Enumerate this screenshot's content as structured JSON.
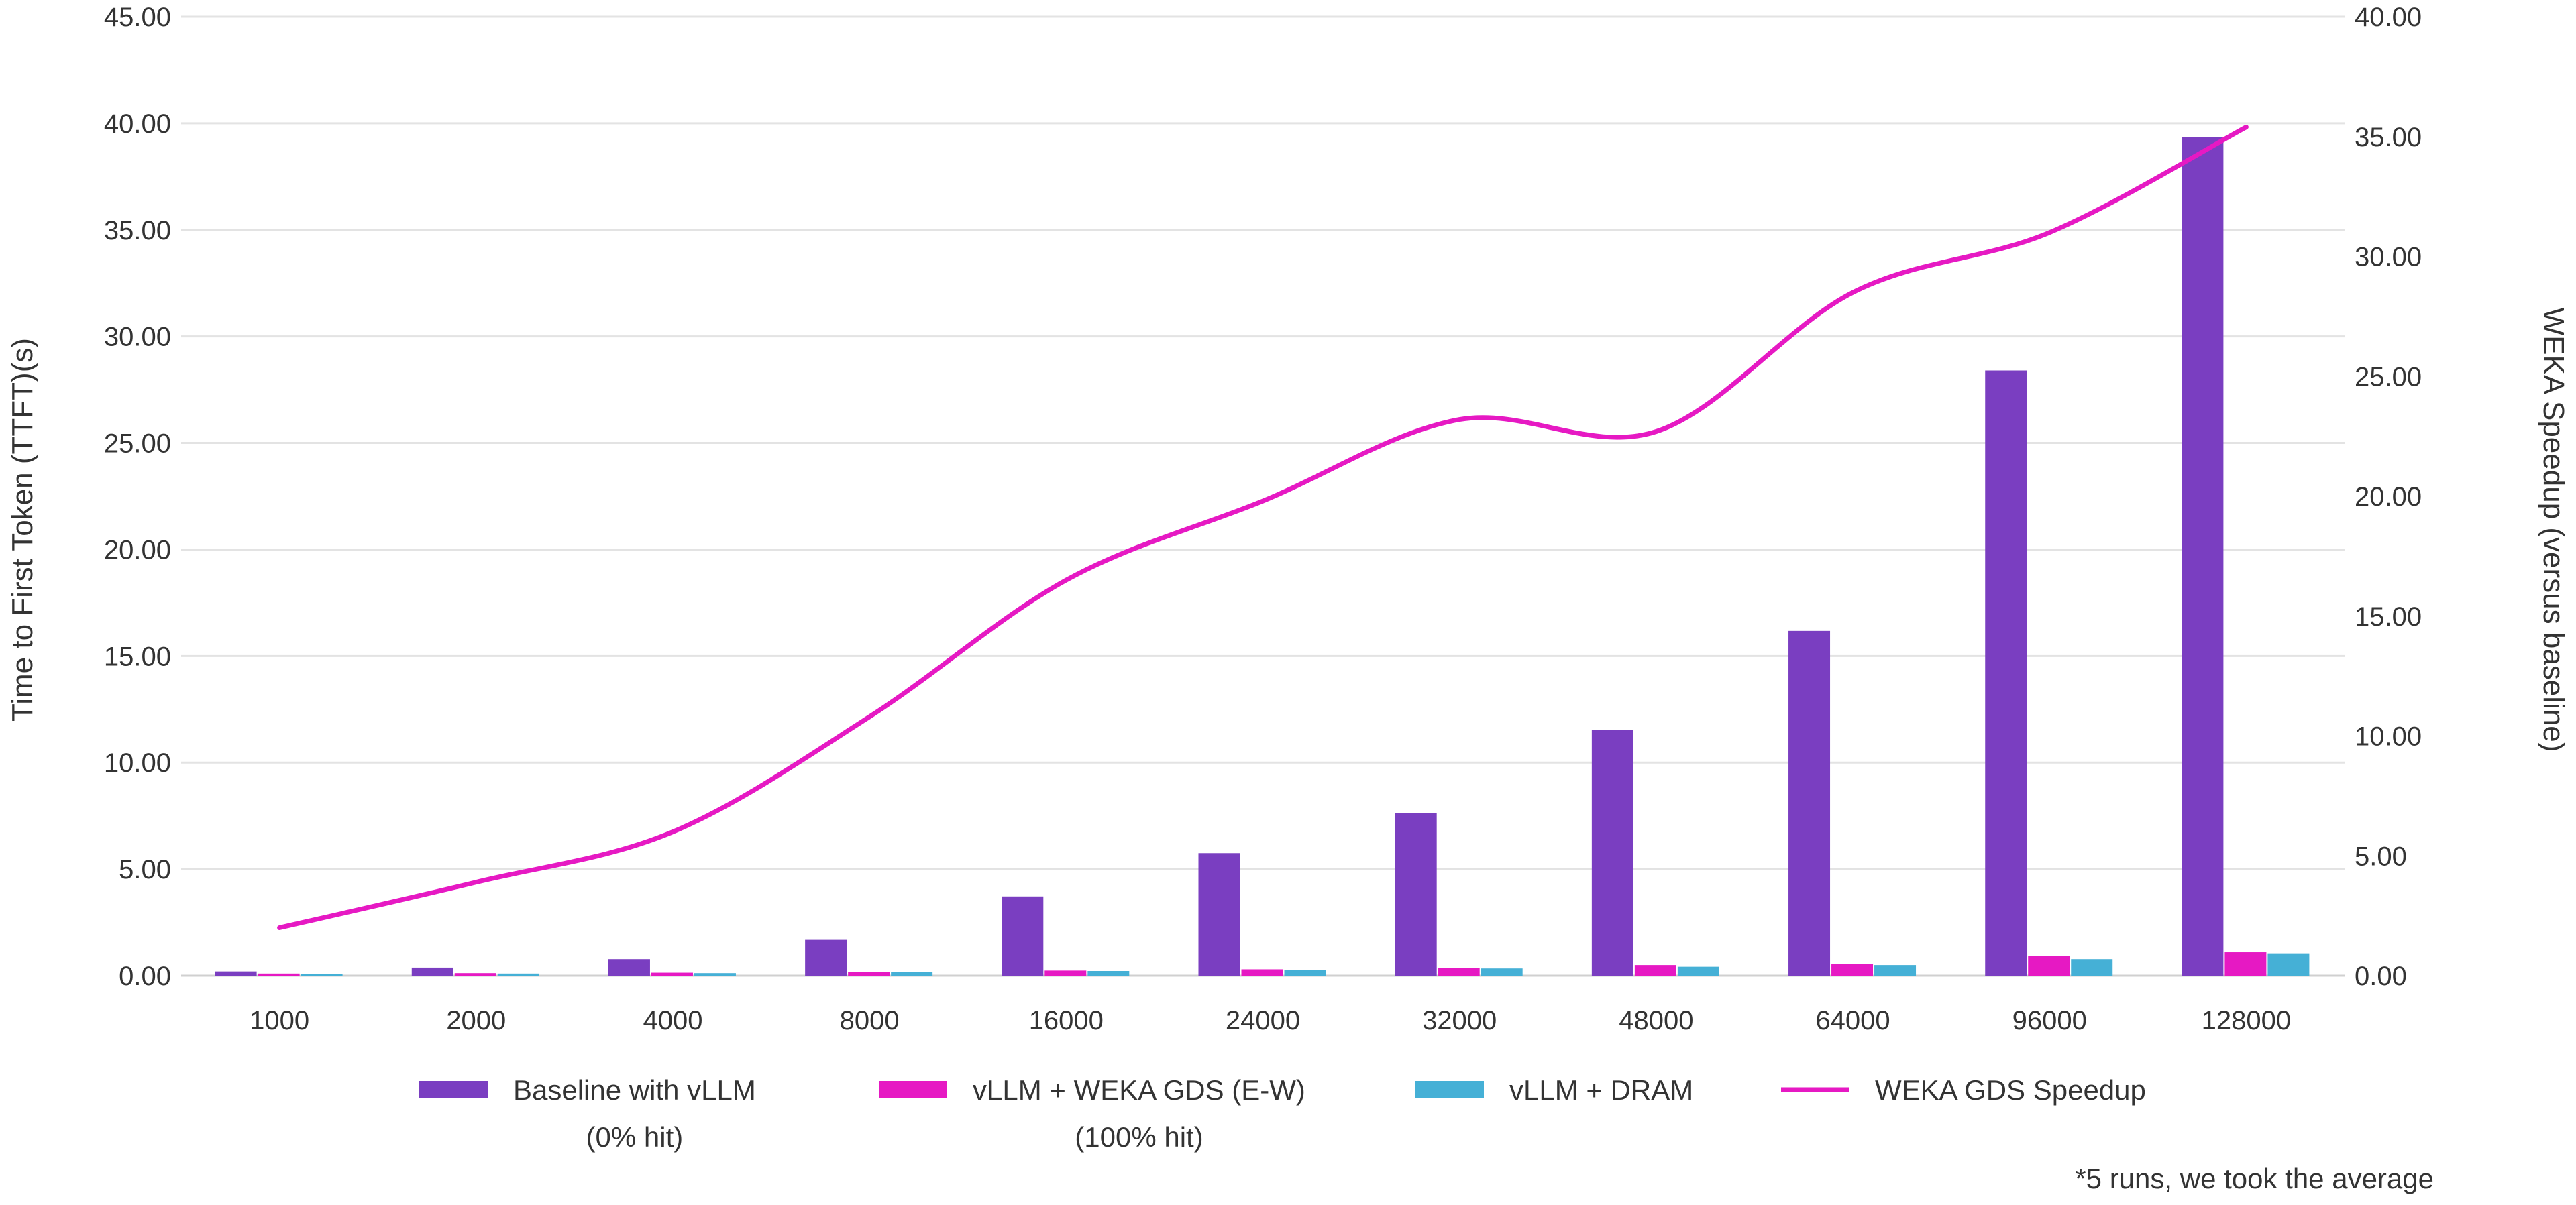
{
  "chart_data": {
    "type": "bar",
    "categories": [
      "1000",
      "2000",
      "4000",
      "8000",
      "16000",
      "24000",
      "32000",
      "48000",
      "64000",
      "96000",
      "128000"
    ],
    "series": [
      {
        "name": "Baseline with vLLM (0% hit)",
        "legend_lines": [
          "Baseline with vLLM",
          "(0% hit)"
        ],
        "type": "bar",
        "axis": "left",
        "color": "#7a3ec1",
        "values": [
          0.2,
          0.38,
          0.78,
          1.68,
          3.72,
          5.75,
          7.62,
          11.52,
          16.18,
          28.4,
          39.35
        ]
      },
      {
        "name": "vLLM + WEKA GDS (E-W) (100% hit)",
        "legend_lines": [
          "vLLM + WEKA GDS (E-W)",
          "(100% hit)"
        ],
        "type": "bar",
        "axis": "left",
        "color": "#e619c3",
        "values": [
          0.1,
          0.12,
          0.14,
          0.18,
          0.24,
          0.3,
          0.36,
          0.5,
          0.56,
          0.92,
          1.1
        ]
      },
      {
        "name": "vLLM + DRAM",
        "legend_lines": [
          "vLLM + DRAM"
        ],
        "type": "bar",
        "axis": "left",
        "color": "#45b0d6",
        "values": [
          0.08,
          0.1,
          0.12,
          0.16,
          0.22,
          0.28,
          0.34,
          0.42,
          0.5,
          0.78,
          1.05
        ]
      },
      {
        "name": "WEKA GDS Speedup",
        "legend_lines": [
          "WEKA GDS Speedup"
        ],
        "type": "line",
        "axis": "right",
        "color": "#e619c3",
        "values": [
          2.0,
          3.9,
          6.0,
          10.8,
          16.5,
          19.8,
          23.2,
          22.7,
          28.5,
          31.0,
          35.4
        ]
      }
    ],
    "ylabel": "Time to First Token (TTFT)(s)",
    "y2label": "WEKA Speedup (versus baseline)",
    "ylim": [
      0,
      45
    ],
    "y2lim": [
      0,
      40
    ],
    "yticks": [
      "0.00",
      "5.00",
      "10.00",
      "15.00",
      "20.00",
      "25.00",
      "30.00",
      "35.00",
      "40.00",
      "45.00"
    ],
    "y2ticks": [
      "0.00",
      "5.00",
      "10.00",
      "15.00",
      "20.00",
      "25.00",
      "30.00",
      "35.00",
      "40.00"
    ],
    "grid": true,
    "legend_position": "bottom",
    "footnote": "*5 runs, we took the average"
  }
}
